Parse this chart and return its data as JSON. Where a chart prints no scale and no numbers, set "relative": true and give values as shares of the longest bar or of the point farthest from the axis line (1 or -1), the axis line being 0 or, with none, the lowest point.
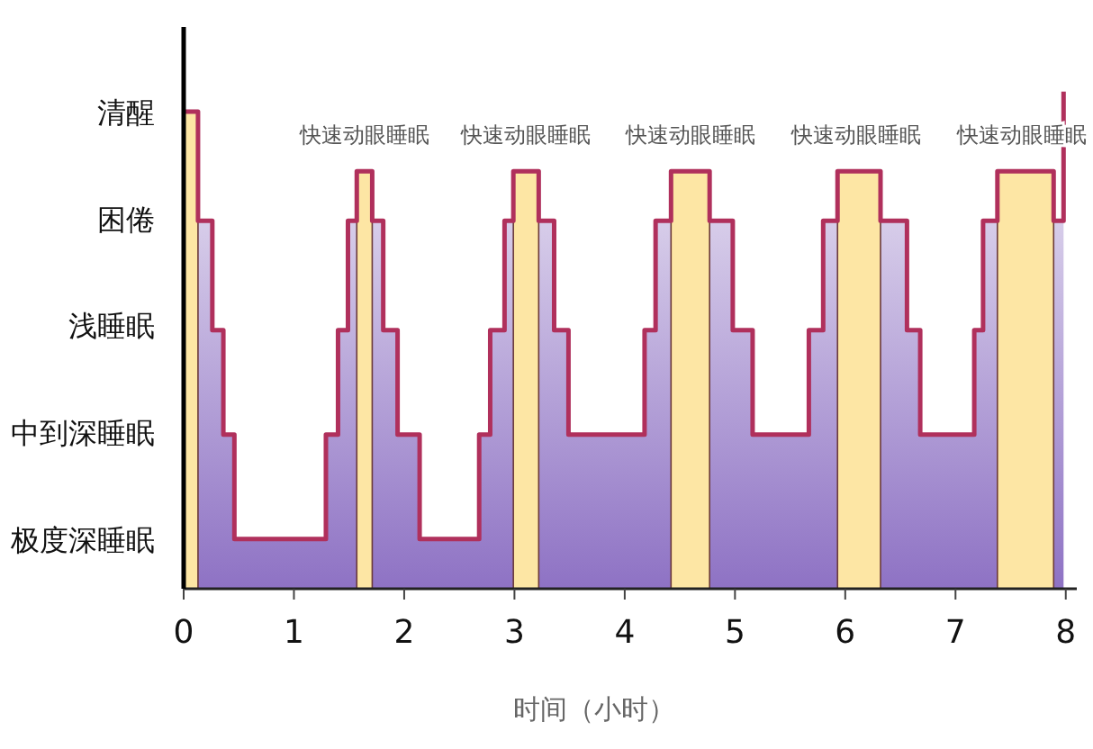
{
  "chart_data": {
    "type": "step",
    "xlabel": "时间（小时）",
    "xlim": [
      0,
      8.1
    ],
    "xticks": [
      0,
      1,
      2,
      3,
      4,
      5,
      6,
      7,
      8
    ],
    "y_categories": [
      "清醒",
      "困倦",
      "浅睡眠",
      "中到深睡眠",
      "极度深睡眠"
    ],
    "relative": true,
    "series": [
      {
        "type": "area",
        "color": "#8e72c4",
        "x": [
          0,
          0.13,
          0.26,
          0.36,
          0.46,
          1.29,
          1.4,
          1.49,
          1.57,
          1.71,
          1.81,
          1.94,
          2.14,
          2.68,
          2.78,
          2.91,
          2.99,
          3.22,
          3.36,
          3.49,
          4.18,
          4.28,
          4.42,
          4.77,
          4.98,
          5.16,
          5.67,
          5.8,
          5.93,
          6.32,
          6.56,
          6.68,
          7.17,
          7.25,
          7.38,
          7.89,
          7.98
        ],
        "values": [
          0.96,
          0.74,
          0.52,
          0.31,
          0.1,
          0.31,
          0.52,
          0.74,
          0.84,
          0.74,
          0.52,
          0.31,
          0.1,
          0.31,
          0.52,
          0.74,
          0.84,
          0.74,
          0.52,
          0.31,
          0.52,
          0.74,
          0.84,
          0.74,
          0.52,
          0.31,
          0.52,
          0.74,
          0.84,
          0.74,
          0.52,
          0.31,
          0.52,
          0.74,
          0.84,
          0.74,
          1
        ]
      },
      {
        "color": "#b0305c",
        "line_style": "solid",
        "x": [
          0,
          0.13,
          0.26,
          0.36,
          0.46,
          1.29,
          1.4,
          1.49,
          1.57,
          1.71,
          1.81,
          1.94,
          2.14,
          2.68,
          2.78,
          2.91,
          2.99,
          3.22,
          3.36,
          3.49,
          4.18,
          4.28,
          4.42,
          4.77,
          4.98,
          5.16,
          5.67,
          5.8,
          5.93,
          6.32,
          6.56,
          6.68,
          7.17,
          7.25,
          7.38,
          7.89,
          7.98
        ],
        "values": [
          0.96,
          0.74,
          0.52,
          0.31,
          0.1,
          0.31,
          0.52,
          0.74,
          0.84,
          0.74,
          0.52,
          0.31,
          0.1,
          0.31,
          0.52,
          0.74,
          0.84,
          0.74,
          0.52,
          0.31,
          0.52,
          0.74,
          0.84,
          0.74,
          0.52,
          0.31,
          0.52,
          0.74,
          0.84,
          0.74,
          0.52,
          0.31,
          0.52,
          0.74,
          0.84,
          0.74,
          1
        ]
      }
    ],
    "bands": [
      {
        "axis": "x",
        "from": 0,
        "to": 0.13,
        "color": "#fde6a4"
      },
      {
        "axis": "x",
        "from": 1.57,
        "to": 1.71,
        "color": "#fde6a4"
      },
      {
        "axis": "x",
        "from": 2.99,
        "to": 3.22,
        "color": "#fde6a4"
      },
      {
        "axis": "x",
        "from": 4.42,
        "to": 4.77,
        "color": "#fde6a4"
      },
      {
        "axis": "x",
        "from": 5.93,
        "to": 6.32,
        "color": "#fde6a4"
      },
      {
        "axis": "x",
        "from": 7.38,
        "to": 7.89,
        "color": "#fde6a4"
      }
    ],
    "annotations": [
      {
        "text": "快速动眼睡眠",
        "x": 1.64,
        "y": 0.84
      },
      {
        "text": "快速动眼睡眠",
        "x": 3.1,
        "y": 0.84
      },
      {
        "text": "快速动眼睡眠",
        "x": 4.6,
        "y": 0.84
      },
      {
        "text": "快速动眼睡眠",
        "x": 6.1,
        "y": 0.84
      },
      {
        "text": "快速动眼睡眠",
        "x": 7.6,
        "y": 0.84
      }
    ]
  }
}
